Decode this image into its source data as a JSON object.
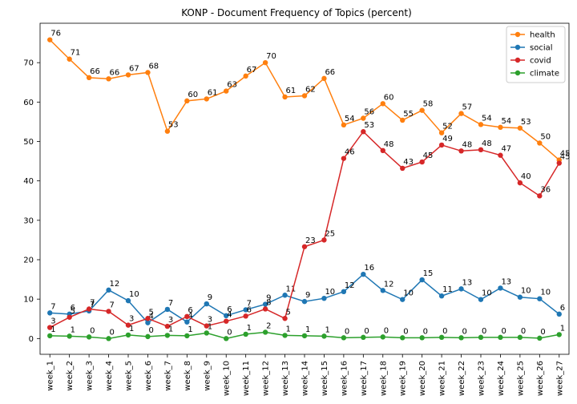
{
  "chart_data": {
    "type": "line",
    "title": "KONP - Document Frequency of Topics (percent)",
    "xlabel": "",
    "ylabel": "",
    "ylim": [
      -4,
      80
    ],
    "yticks": [
      0,
      10,
      20,
      30,
      40,
      50,
      60,
      70
    ],
    "grid": false,
    "legend_position": "top-right",
    "categories": [
      "week_1",
      "week_2",
      "week_3",
      "week_4",
      "week_5",
      "week_6",
      "week_7",
      "week_8",
      "week_9",
      "week_10",
      "week_11",
      "week_12",
      "week_13",
      "week_14",
      "week_15",
      "week_16",
      "week_17",
      "week_18",
      "week_19",
      "week_20",
      "week_21",
      "week_22",
      "week_23",
      "week_24",
      "week_25",
      "week_26",
      "week_27"
    ],
    "series": [
      {
        "name": "health",
        "color": "#ff7f0e",
        "values": [
          75.8,
          70.9,
          66.2,
          65.9,
          66.9,
          67.5,
          52.6,
          60.3,
          60.8,
          62.8,
          66.6,
          70.0,
          61.3,
          61.6,
          66.0,
          54.2,
          55.9,
          59.6,
          55.4,
          57.9,
          52.2,
          57.1,
          54.3,
          53.6,
          53.4,
          49.6,
          45.3
        ],
        "labels": [
          "76",
          "71",
          "66",
          "66",
          "67",
          "68",
          "53",
          "60",
          "61",
          "63",
          "67",
          "70",
          "61",
          "62",
          "66",
          "54",
          "56",
          "60",
          "55",
          "58",
          "52",
          "57",
          "54",
          "54",
          "53",
          "50",
          "45"
        ]
      },
      {
        "name": "social",
        "color": "#1f77b4",
        "values": [
          6.5,
          6.2,
          7.0,
          12.3,
          9.6,
          4.0,
          7.4,
          4.2,
          8.8,
          5.8,
          7.3,
          8.7,
          11.0,
          9.4,
          10.2,
          11.9,
          16.3,
          12.2,
          9.9,
          14.9,
          10.8,
          12.6,
          9.9,
          12.8,
          10.5,
          10.1,
          6.2
        ],
        "labels": [
          "7",
          "6",
          "7",
          "12",
          "10",
          "4",
          "7",
          "4",
          "9",
          "6",
          "7",
          "9",
          "11",
          "9",
          "10",
          "12",
          "16",
          "12",
          "10",
          "15",
          "11",
          "13",
          "10",
          "13",
          "10",
          "10",
          "6"
        ]
      },
      {
        "name": "covid",
        "color": "#d62728",
        "values": [
          2.8,
          5.4,
          7.5,
          6.9,
          3.4,
          5.1,
          3.1,
          5.6,
          3.2,
          4.4,
          5.7,
          7.5,
          5.1,
          23.3,
          25.0,
          45.7,
          52.5,
          47.7,
          43.2,
          44.8,
          49.1,
          47.6,
          47.9,
          46.5,
          39.5,
          36.2,
          44.5
        ],
        "labels": [
          "3",
          "5",
          "7",
          "7",
          "3",
          "5",
          "3",
          "6",
          "3",
          "4",
          "6",
          "8",
          "5",
          "23",
          "25",
          "46",
          "53",
          "48",
          "43",
          "45",
          "49",
          "48",
          "48",
          "47",
          "40",
          "36",
          "45"
        ]
      },
      {
        "name": "climate",
        "color": "#2ca02c",
        "values": [
          0.7,
          0.6,
          0.4,
          0.0,
          0.9,
          0.5,
          0.8,
          0.7,
          1.4,
          0.0,
          1.1,
          1.6,
          0.8,
          0.7,
          0.6,
          0.2,
          0.3,
          0.4,
          0.2,
          0.2,
          0.3,
          0.2,
          0.3,
          0.3,
          0.3,
          0.1,
          1.0
        ],
        "labels": [
          "1",
          "1",
          "0",
          "0",
          "1",
          "0",
          "1",
          "1",
          "1",
          "0",
          "1",
          "2",
          "1",
          "1",
          "1",
          "0",
          "0",
          "0",
          "0",
          "0",
          "0",
          "0",
          "0",
          "0",
          "0",
          "0",
          "1"
        ]
      }
    ]
  }
}
